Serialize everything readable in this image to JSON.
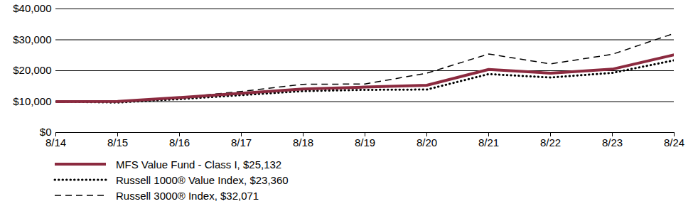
{
  "chart_data": {
    "type": "line",
    "x": [
      "8/14",
      "8/15",
      "8/16",
      "8/17",
      "8/18",
      "8/19",
      "8/20",
      "8/21",
      "8/22",
      "8/23",
      "8/24"
    ],
    "series": [
      {
        "name": "MFS Value Fund - Class I, $25,132",
        "color": "#8b2a3f",
        "line_style": "solid",
        "values": [
          10000,
          10050,
          11300,
          12700,
          14100,
          14700,
          15300,
          20400,
          19200,
          20500,
          25132
        ]
      },
      {
        "name": "Russell 1000® Value Index, $23,360",
        "color": "#000000",
        "line_style": "dotted",
        "values": [
          10000,
          9700,
          10800,
          12100,
          13400,
          13800,
          13900,
          18900,
          17800,
          19300,
          23360
        ]
      },
      {
        "name": "Russell 3000® Index, $32,071",
        "color": "#000000",
        "line_style": "dashed",
        "values": [
          10000,
          10000,
          11300,
          13300,
          15600,
          15700,
          19200,
          25400,
          22200,
          25300,
          32071
        ]
      }
    ],
    "ylim": [
      0,
      40000
    ],
    "yticks": [
      {
        "value": 0,
        "label": "$0"
      },
      {
        "value": 10000,
        "label": "$10,000"
      },
      {
        "value": 20000,
        "label": "$20,000"
      },
      {
        "value": 30000,
        "label": "$30,000"
      },
      {
        "value": 40000,
        "label": "$40,000"
      }
    ],
    "grid": true,
    "legend": "bottom-left"
  }
}
